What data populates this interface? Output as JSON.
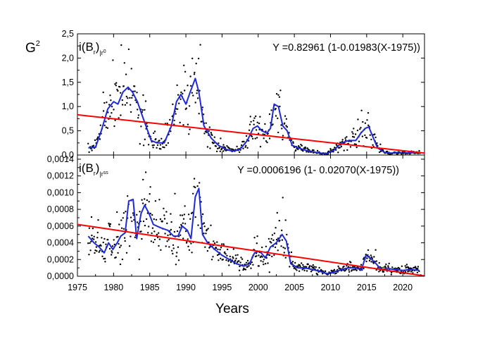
{
  "chart_data": {
    "type": "scatter",
    "xlabel": "Years",
    "x_ticks": [
      "1975",
      "1980",
      "1985",
      "1990",
      "1995",
      "2000",
      "2005",
      "2010",
      "2015",
      "2020"
    ],
    "xlim": [
      1975,
      2023
    ],
    "panels": [
      {
        "name": "top",
        "ylabel_main": "G",
        "ylabel_sup": "2",
        "label_main": "i(B",
        "label_sub1": "r",
        "label_mid": ")",
        "label_sub2": "|r",
        "label_sub3": "0",
        "equation": "Y =0.82961 (1-0.01983(X-1975))",
        "ylim": [
          0,
          2.5
        ],
        "y_ticks": [
          "0,0",
          "0,5",
          "1,0",
          "1,5",
          "2,0",
          "2,5"
        ],
        "y_tick_values": [
          0,
          0.5,
          1.0,
          1.5,
          2.0,
          2.5
        ],
        "trend": {
          "a": 0.82961,
          "b": 0.01983,
          "x0": 1975
        },
        "smoothed": [
          [
            1976.5,
            0.15
          ],
          [
            1977.5,
            0.16
          ],
          [
            1978.3,
            0.5
          ],
          [
            1979.2,
            0.95
          ],
          [
            1980.0,
            1.1
          ],
          [
            1980.6,
            1.05
          ],
          [
            1981.3,
            1.3
          ],
          [
            1982.0,
            1.4
          ],
          [
            1982.6,
            1.3
          ],
          [
            1983.3,
            1.1
          ],
          [
            1984.0,
            0.8
          ],
          [
            1984.6,
            0.55
          ],
          [
            1985.2,
            0.3
          ],
          [
            1986.0,
            0.25
          ],
          [
            1987.0,
            0.25
          ],
          [
            1988.0,
            0.6
          ],
          [
            1988.7,
            1.1
          ],
          [
            1989.3,
            1.25
          ],
          [
            1990.0,
            1.05
          ],
          [
            1990.6,
            1.3
          ],
          [
            1991.3,
            1.58
          ],
          [
            1991.8,
            1.3
          ],
          [
            1992.5,
            0.6
          ],
          [
            1993.5,
            0.35
          ],
          [
            1994.5,
            0.2
          ],
          [
            1995.5,
            0.12
          ],
          [
            1996.5,
            0.08
          ],
          [
            1997.5,
            0.12
          ],
          [
            1998.5,
            0.3
          ],
          [
            1999.3,
            0.55
          ],
          [
            1999.9,
            0.6
          ],
          [
            2000.5,
            0.5
          ],
          [
            2001.2,
            0.45
          ],
          [
            2001.7,
            0.55
          ],
          [
            2002.2,
            1.05
          ],
          [
            2002.8,
            1.0
          ],
          [
            2003.4,
            0.6
          ],
          [
            2004.0,
            0.5
          ],
          [
            2004.7,
            0.2
          ],
          [
            2005.5,
            0.15
          ],
          [
            2006.5,
            0.1
          ],
          [
            2007.5,
            0.07
          ],
          [
            2008.5,
            0.04
          ],
          [
            2009.5,
            0.03
          ],
          [
            2010.5,
            0.1
          ],
          [
            2011.5,
            0.25
          ],
          [
            2012.5,
            0.3
          ],
          [
            2013.5,
            0.3
          ],
          [
            2014.2,
            0.45
          ],
          [
            2014.8,
            0.55
          ],
          [
            2015.3,
            0.58
          ],
          [
            2015.8,
            0.4
          ],
          [
            2016.5,
            0.15
          ],
          [
            2017.5,
            0.05
          ],
          [
            2018.5,
            0.04
          ],
          [
            2019.5,
            0.05
          ],
          [
            2020.5,
            0.04
          ],
          [
            2021.5,
            0.05
          ],
          [
            2022.5,
            0.05
          ]
        ],
        "scatter_density": 540,
        "scatter_seed": 7
      },
      {
        "name": "bottom",
        "label_main": "i(B",
        "label_sub1": "r",
        "label_mid": ")",
        "label_sub2": "|r",
        "label_sub3": "ss",
        "equation": "Y =0.0006196 (1- 0.02070(X-1975))",
        "ylim": [
          0,
          0.00145
        ],
        "y_ticks": [
          "0,0000",
          "0,0002",
          "0,0004",
          "0,0006",
          "0,0008",
          "0,0010",
          "0,0012",
          "0,0014"
        ],
        "y_tick_values": [
          0,
          0.0002,
          0.0004,
          0.0006,
          0.0008,
          0.001,
          0.0012,
          0.0014
        ],
        "trend": {
          "a": 0.0006196,
          "b": 0.0207,
          "x0": 1975
        },
        "smoothed": [
          [
            1976.5,
            0.00048
          ],
          [
            1977.3,
            0.0004
          ],
          [
            1978.0,
            0.00035
          ],
          [
            1978.7,
            0.00028
          ],
          [
            1979.3,
            0.0004
          ],
          [
            1979.9,
            0.00032
          ],
          [
            1980.5,
            0.0004
          ],
          [
            1981.0,
            0.00048
          ],
          [
            1981.6,
            0.00052
          ],
          [
            1982.1,
            0.0009
          ],
          [
            1982.7,
            0.00092
          ],
          [
            1983.2,
            0.00045
          ],
          [
            1983.8,
            0.00075
          ],
          [
            1984.3,
            0.00085
          ],
          [
            1984.9,
            0.00075
          ],
          [
            1985.5,
            0.00062
          ],
          [
            1986.5,
            0.00058
          ],
          [
            1987.5,
            0.00055
          ],
          [
            1988.3,
            0.00048
          ],
          [
            1988.9,
            0.00048
          ],
          [
            1989.5,
            0.0006
          ],
          [
            1990.2,
            0.00055
          ],
          [
            1990.7,
            0.00045
          ],
          [
            1991.3,
            0.00095
          ],
          [
            1991.8,
            0.00105
          ],
          [
            1992.3,
            0.0005
          ],
          [
            1993.0,
            0.0004
          ],
          [
            1994.0,
            0.00032
          ],
          [
            1995.0,
            0.00025
          ],
          [
            1996.0,
            0.0002
          ],
          [
            1997.0,
            0.00015
          ],
          [
            1998.0,
            0.00012
          ],
          [
            1998.8,
            0.00015
          ],
          [
            1999.5,
            0.00028
          ],
          [
            2000.2,
            0.0003
          ],
          [
            2001.0,
            0.00022
          ],
          [
            2001.7,
            0.00035
          ],
          [
            2002.5,
            0.0004
          ],
          [
            2003.3,
            0.0005
          ],
          [
            2003.9,
            0.00042
          ],
          [
            2004.5,
            0.00015
          ],
          [
            2005.5,
            0.0001
          ],
          [
            2006.5,
            0.0001
          ],
          [
            2007.5,
            8e-05
          ],
          [
            2008.5,
            6e-05
          ],
          [
            2009.5,
            3e-05
          ],
          [
            2010.5,
            5e-05
          ],
          [
            2011.5,
            8e-05
          ],
          [
            2012.5,
            0.0001
          ],
          [
            2013.5,
            0.0001
          ],
          [
            2014.3,
            8e-05
          ],
          [
            2014.9,
            0.00025
          ],
          [
            2015.5,
            0.00022
          ],
          [
            2016.3,
            0.00015
          ],
          [
            2017.0,
            8e-05
          ],
          [
            2018.0,
            9e-05
          ],
          [
            2019.0,
            8e-05
          ],
          [
            2020.0,
            7e-05
          ],
          [
            2021.0,
            8e-05
          ],
          [
            2022.3,
            7e-05
          ]
        ],
        "scatter_density": 620,
        "scatter_seed": 19
      }
    ],
    "colors": {
      "trend": "#ff0000",
      "smoothed": "#1f2ad6",
      "points": "#000000",
      "axis": "#000000"
    }
  }
}
